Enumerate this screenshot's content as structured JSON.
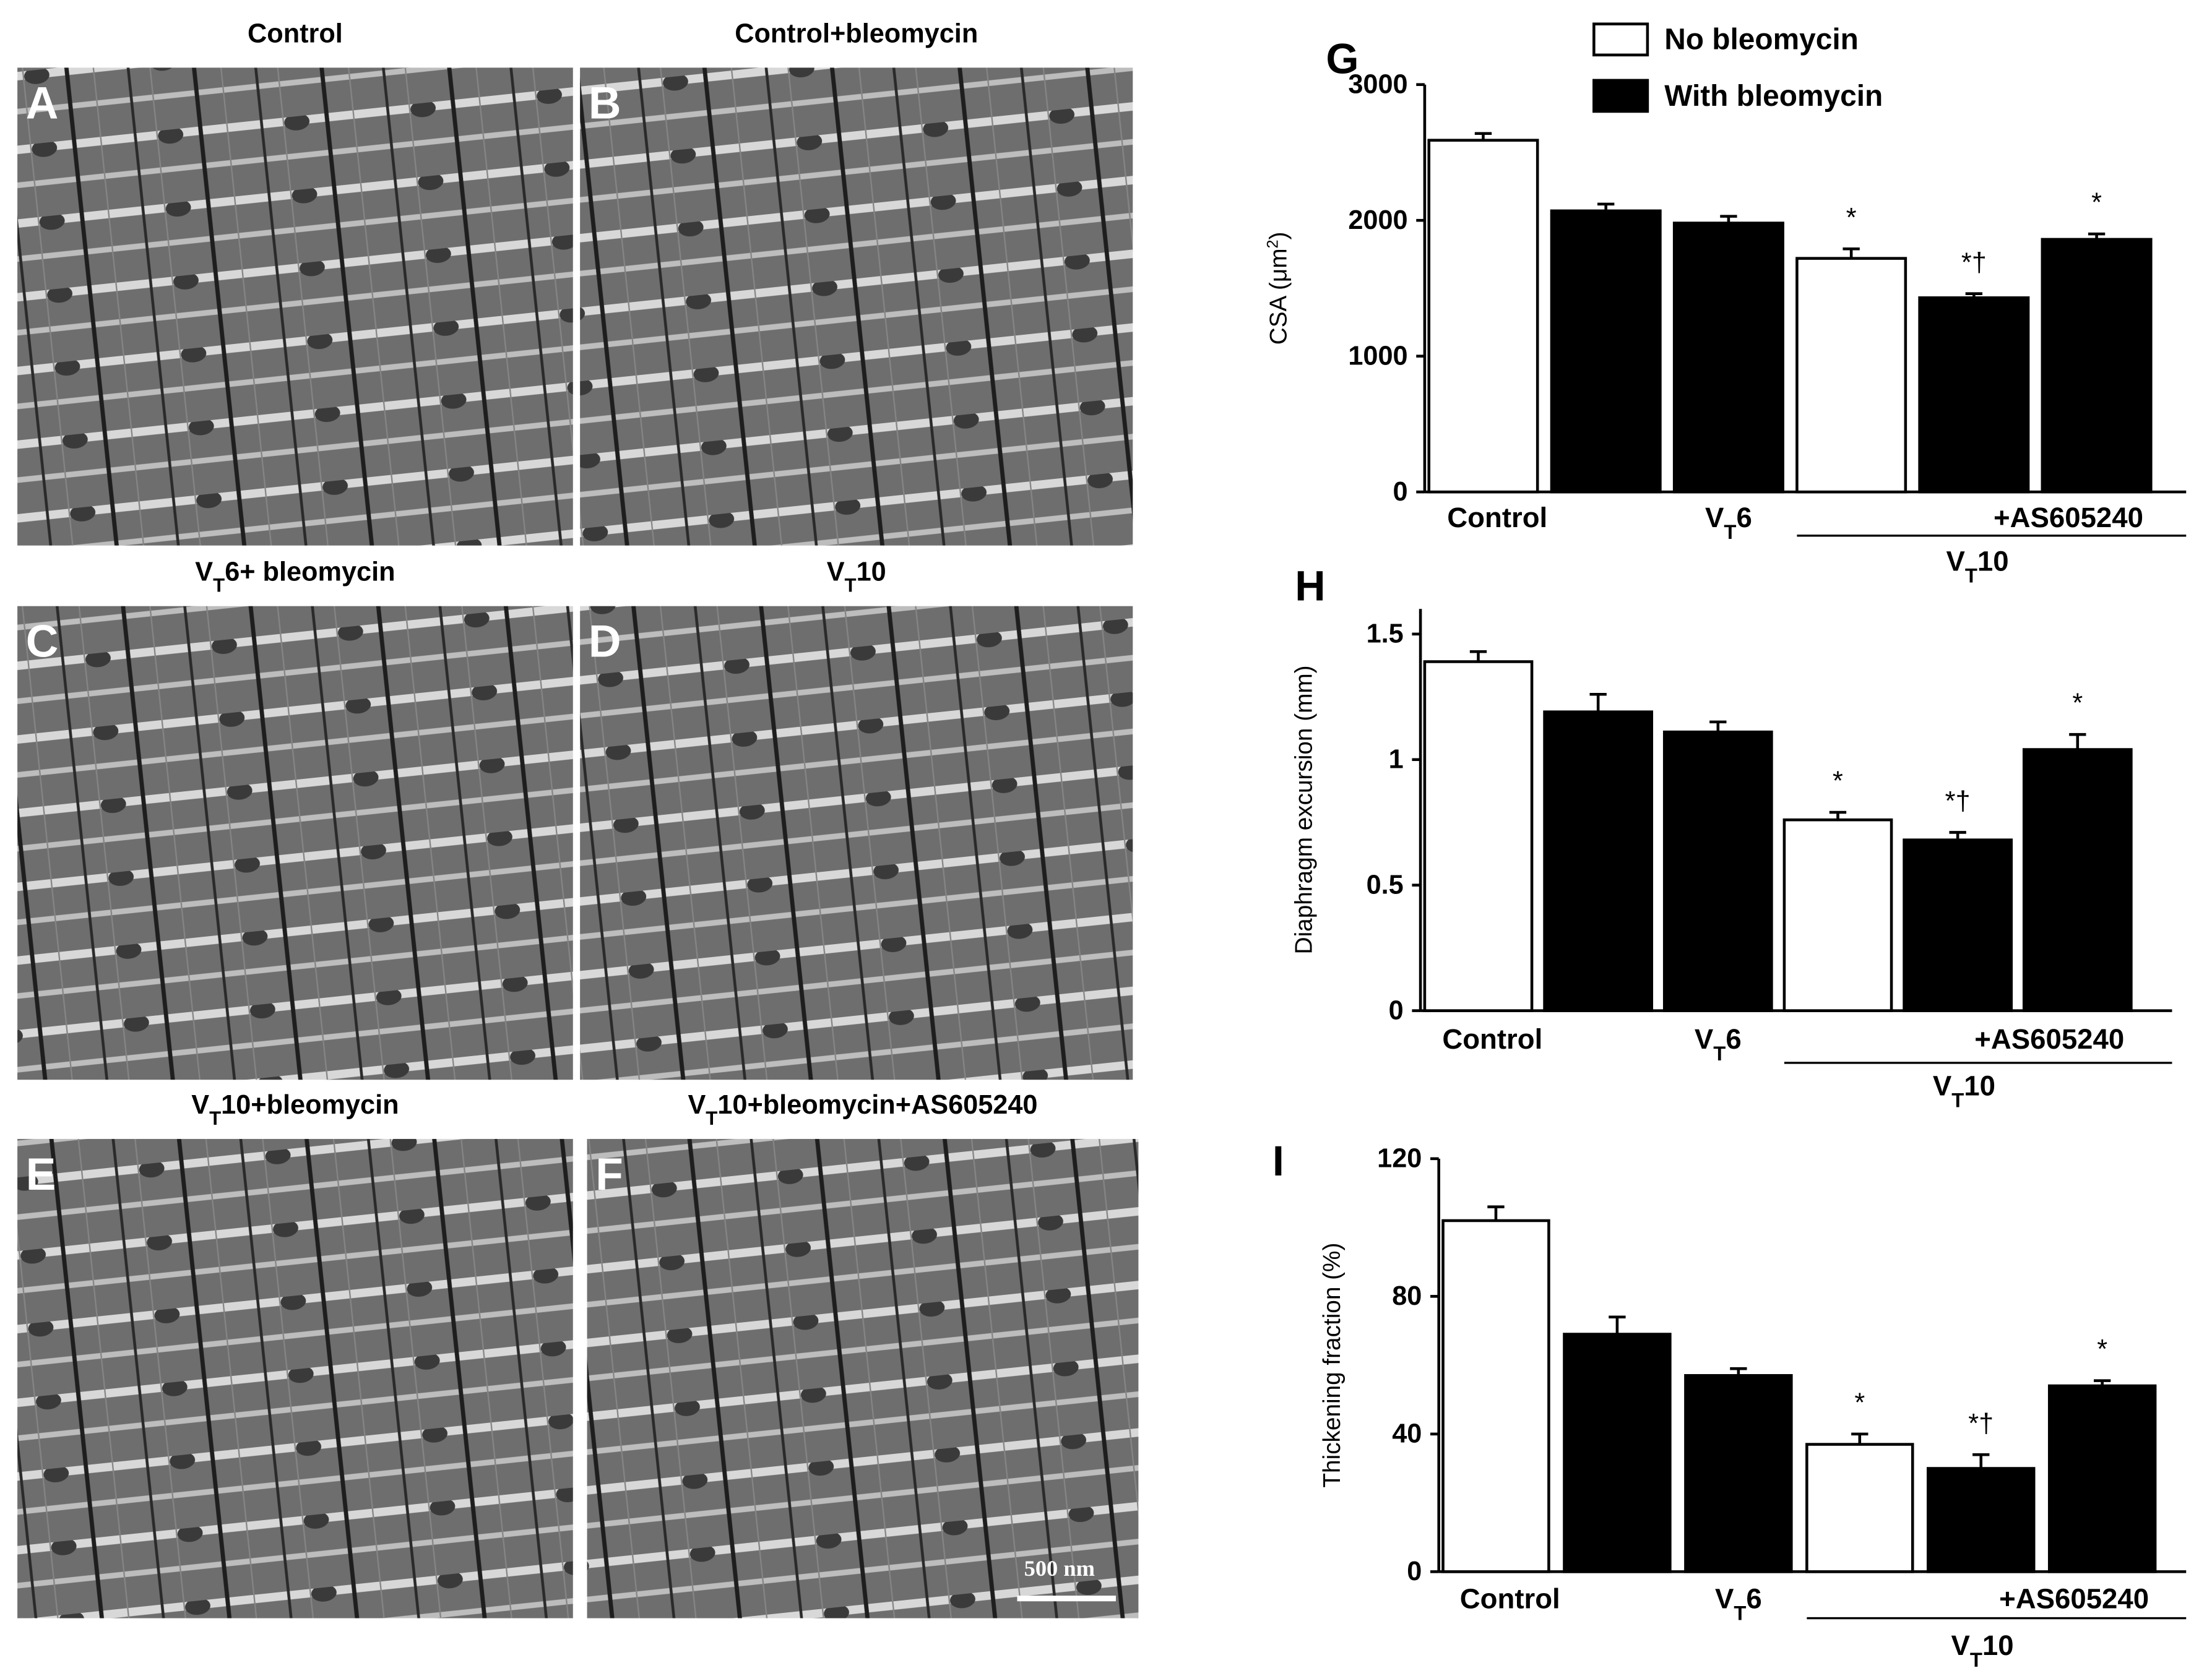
{
  "micrographs": [
    {
      "letter": "A",
      "title": "Control"
    },
    {
      "letter": "B",
      "title": "Control+bleomycin"
    },
    {
      "letter": "C",
      "title": [
        "V",
        {
          "sub": "T"
        },
        "6+ bleomycin"
      ]
    },
    {
      "letter": "D",
      "title": [
        "V",
        {
          "sub": "T"
        },
        "10"
      ]
    },
    {
      "letter": "E",
      "title": [
        "V",
        {
          "sub": "T"
        },
        "10+bleomycin"
      ]
    },
    {
      "letter": "F",
      "title": [
        "V",
        {
          "sub": "T"
        },
        "10+bleomycin+AS605240"
      ],
      "scale_bar": "500 nm"
    }
  ],
  "chart_data": [
    {
      "type": "bar",
      "letter": "G",
      "y_label": [
        "CSA (μm",
        {
          "sup": "2"
        },
        ")"
      ],
      "categories": [
        "Control",
        null,
        [
          "V",
          {
            "sub": "T"
          },
          "6"
        ],
        null,
        null,
        "+AS605240"
      ],
      "group_label": [
        "V",
        {
          "sub": "T"
        },
        "10"
      ],
      "series": [
        {
          "name": "No bleomycin",
          "color": "#ffffff",
          "values": [
            2590,
            null,
            null,
            1720,
            null,
            null
          ],
          "errors": [
            50,
            null,
            null,
            70,
            null,
            null
          ]
        },
        {
          "name": "With bleomycin",
          "color": "#000000",
          "values": [
            null,
            2070,
            1980,
            null,
            1430,
            1860
          ],
          "errors": [
            null,
            50,
            50,
            null,
            30,
            40
          ]
        }
      ],
      "significance": [
        null,
        null,
        null,
        "*",
        "*†",
        "*"
      ],
      "ylim": [
        0,
        3000
      ],
      "yticks": [
        0,
        1000,
        2000,
        3000
      ]
    },
    {
      "type": "bar",
      "letter": "H",
      "y_label": "Diaphragm excursion (mm)",
      "categories": [
        "Control",
        null,
        [
          "V",
          {
            "sub": "T"
          },
          "6"
        ],
        null,
        null,
        "+AS605240"
      ],
      "group_label": [
        "V",
        {
          "sub": "T"
        },
        "10"
      ],
      "series": [
        {
          "color": "#ffffff",
          "values": [
            1.39,
            null,
            null,
            0.76,
            null,
            null
          ],
          "errors": [
            0.04,
            null,
            null,
            0.03,
            null,
            null
          ]
        },
        {
          "color": "#000000",
          "values": [
            null,
            1.19,
            1.11,
            null,
            0.68,
            1.04
          ],
          "errors": [
            null,
            0.07,
            0.04,
            null,
            0.03,
            0.06
          ]
        }
      ],
      "significance": [
        null,
        null,
        null,
        "*",
        "*†",
        "*"
      ],
      "ylim": [
        0,
        1.6
      ],
      "yticks": [
        0,
        0.5,
        1,
        1.5
      ]
    },
    {
      "type": "bar",
      "letter": "I",
      "y_label": "Thickening fraction (%)",
      "categories": [
        "Control",
        null,
        [
          "V",
          {
            "sub": "T"
          },
          "6"
        ],
        null,
        null,
        "+AS605240"
      ],
      "group_label": [
        "V",
        {
          "sub": "T"
        },
        "10"
      ],
      "series": [
        {
          "color": "#ffffff",
          "values": [
            102,
            null,
            null,
            37,
            null,
            null
          ],
          "errors": [
            4,
            null,
            null,
            3,
            null,
            null
          ]
        },
        {
          "color": "#000000",
          "values": [
            null,
            69,
            57,
            null,
            30,
            54
          ],
          "errors": [
            null,
            5,
            2,
            null,
            4,
            1.5
          ]
        }
      ],
      "significance": [
        null,
        null,
        null,
        "*",
        "*†",
        "*"
      ],
      "ylim": [
        0,
        120
      ],
      "yticks": [
        0,
        40,
        80,
        120
      ]
    }
  ]
}
